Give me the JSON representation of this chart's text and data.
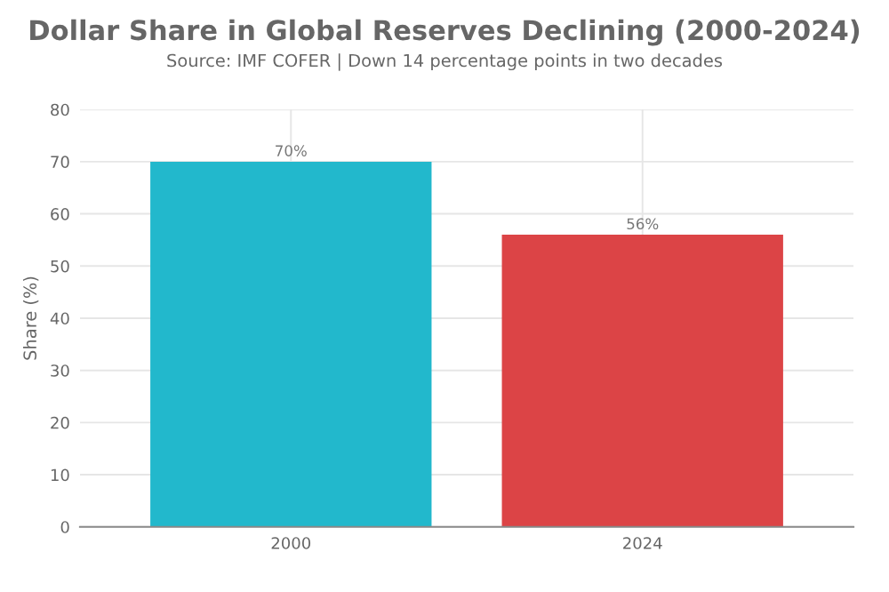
{
  "chart_data": {
    "type": "bar",
    "title": "Dollar Share in Global Reserves Declining (2000-2024)",
    "subtitle": "Source: IMF COFER | Down 14 percentage points in two decades",
    "ylabel": "Share (%)",
    "categories": [
      "2000",
      "2024"
    ],
    "values": [
      70,
      56
    ],
    "colors": [
      "#22b8cc",
      "#dc4446"
    ],
    "value_labels": [
      "70%",
      "56%"
    ],
    "ylim": [
      0,
      80
    ],
    "yticks": [
      0,
      10,
      20,
      30,
      40,
      50,
      60,
      70,
      80
    ],
    "grid": true,
    "legend": false
  }
}
